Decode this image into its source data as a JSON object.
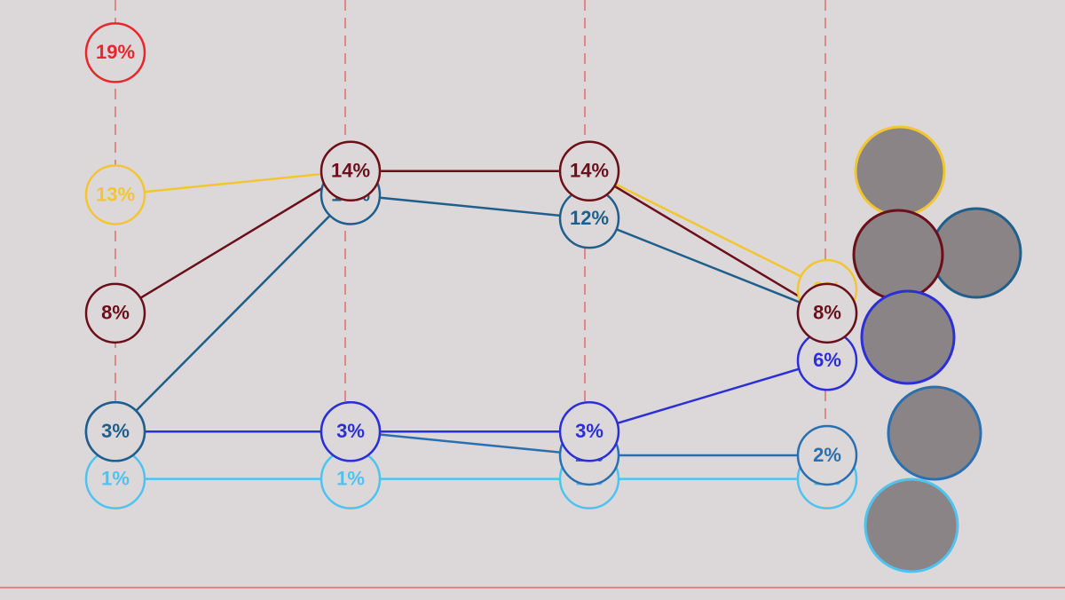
{
  "chart_data": {
    "type": "line",
    "categories": [
      null,
      null,
      null,
      null
    ],
    "ylim": [
      -1,
      21
    ],
    "series": [
      {
        "color": "#4fc3ef",
        "values": [
          1,
          1,
          1,
          1
        ],
        "value_labels": [
          "1%",
          "1%",
          "1%",
          "1%"
        ]
      },
      {
        "color": "#2a6fb0",
        "values": [
          3,
          3,
          2,
          2
        ],
        "value_labels": [
          "3%",
          "3%",
          "2%",
          "2%"
        ]
      },
      {
        "color": "#2b2fd6",
        "values": [
          3,
          3,
          3,
          6
        ],
        "value_labels": [
          "3%",
          "3%",
          "3%",
          "6%"
        ]
      },
      {
        "color": "#1f5f8b",
        "values": [
          3,
          13,
          12,
          8
        ],
        "value_labels": [
          "3%",
          "13%",
          "12%",
          "8%"
        ]
      },
      {
        "color": "#f2c531",
        "values": [
          13,
          14,
          14,
          9
        ],
        "value_labels": [
          "13%",
          "14%",
          "14%",
          "9%"
        ]
      },
      {
        "color": "#6b0f1a",
        "values": [
          8,
          14,
          14,
          8
        ],
        "value_labels": [
          "8%",
          "14%",
          "14%",
          "8%"
        ]
      },
      {
        "color": "#e8262b",
        "values": [
          19,
          null,
          null,
          null
        ],
        "value_labels": [
          "19%",
          null,
          null,
          null
        ]
      }
    ]
  }
}
